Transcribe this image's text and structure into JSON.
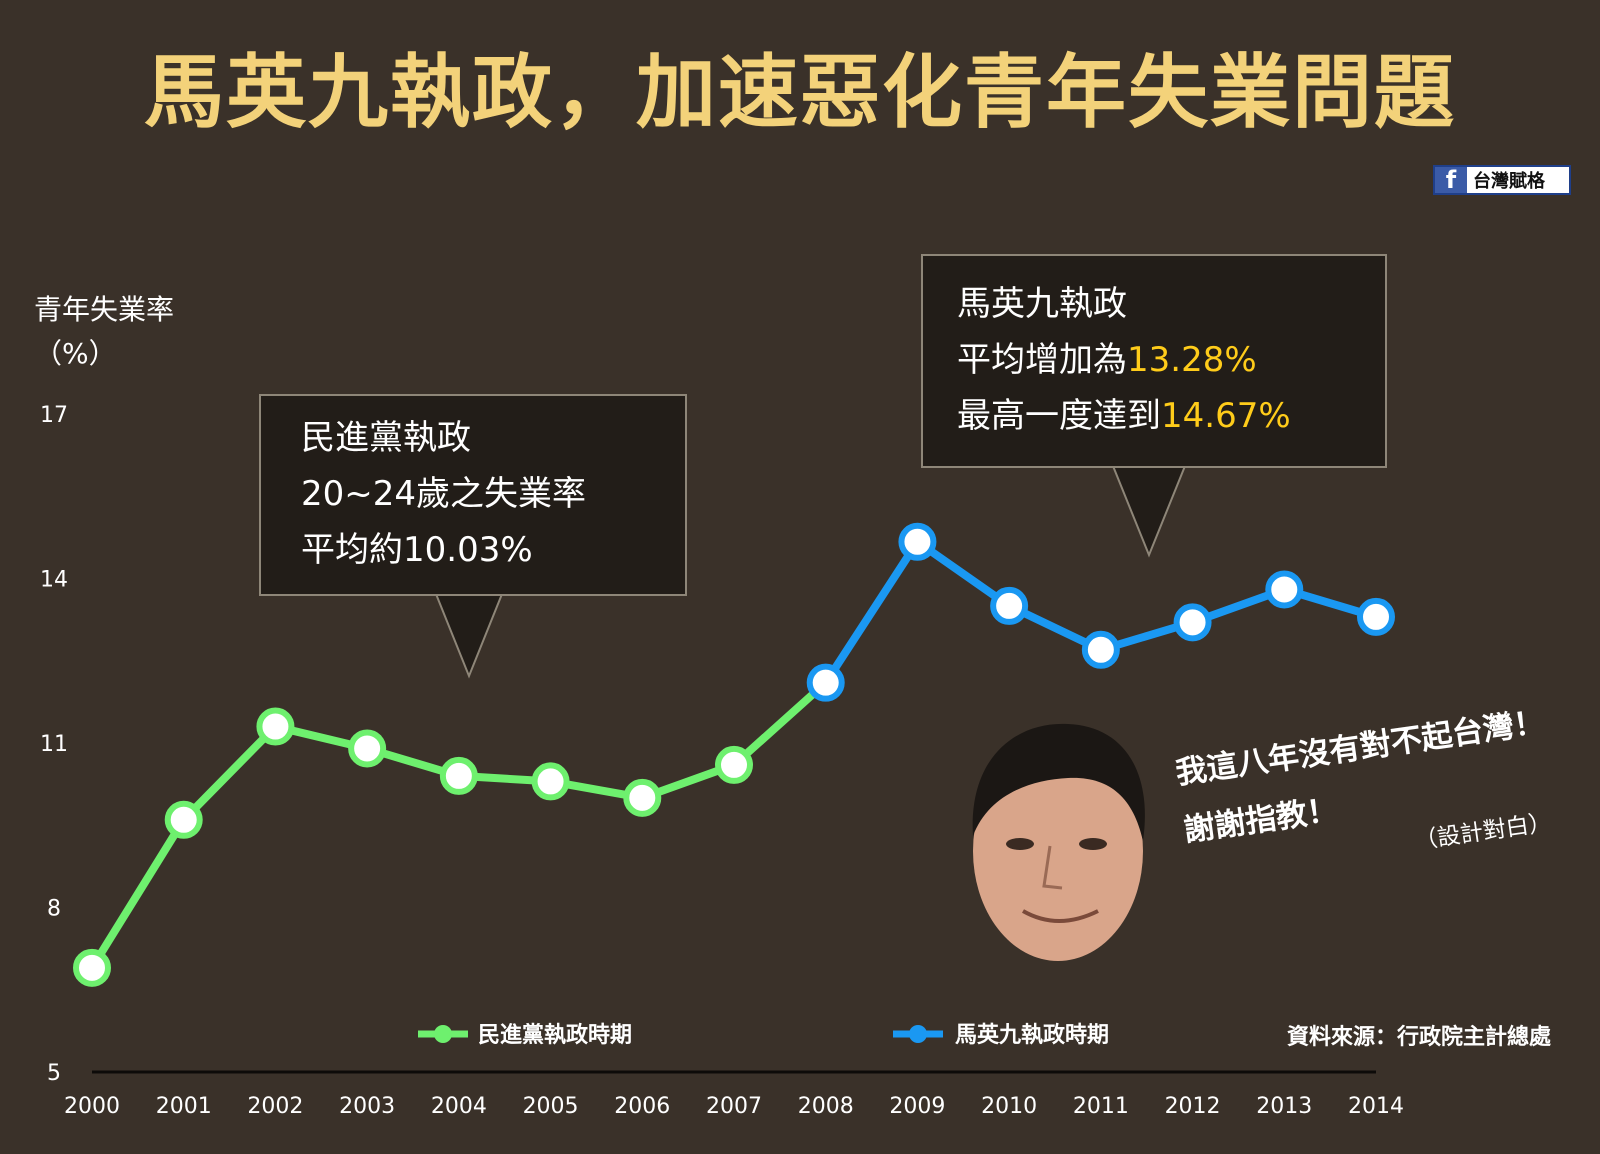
{
  "title": "馬英九執政，加速惡化青年失業問題",
  "brand": {
    "icon": "facebook-icon",
    "label": "台灣賦格"
  },
  "ylabel_line1": "青年失業率",
  "ylabel_line2": "（%）",
  "callout_dpp": {
    "line1": "民進黨執政",
    "line2": "20~24歲之失業率",
    "line3": "平均約10.03%"
  },
  "callout_ma": {
    "line1": "馬英九執政",
    "line2_prefix": "平均增加為",
    "line2_value": "13.28%",
    "line3_prefix": "最高一度達到",
    "line3_value": "14.67%"
  },
  "quote": {
    "line1": "我這八年沒有對不起台灣！",
    "line2": "謝謝指教！",
    "note": "（設計對白）"
  },
  "source": "資料來源：行政院主計總處",
  "colors": {
    "dpp": "#6ef06e",
    "ma": "#1a98f2",
    "title": "#f3d27a",
    "highlight": "#ffcc1a"
  },
  "chart_data": {
    "type": "line",
    "x": [
      2000,
      2001,
      2002,
      2003,
      2004,
      2005,
      2006,
      2007,
      2008,
      2009,
      2010,
      2011,
      2012,
      2013,
      2014
    ],
    "yticks": [
      5,
      8,
      11,
      14,
      17
    ],
    "ylim": [
      5,
      17
    ],
    "series": [
      {
        "name": "民進黨執政時期",
        "color": "#6ef06e",
        "x": [
          2000,
          2001,
          2002,
          2003,
          2004,
          2005,
          2006,
          2007,
          2008
        ],
        "values": [
          6.9,
          9.6,
          11.3,
          10.9,
          10.4,
          10.3,
          10.0,
          10.6,
          12.1
        ]
      },
      {
        "name": "馬英九執政時期",
        "color": "#1a98f2",
        "x": [
          2008,
          2009,
          2010,
          2011,
          2012,
          2013,
          2014
        ],
        "values": [
          12.1,
          14.67,
          13.5,
          12.7,
          13.2,
          13.8,
          13.3
        ]
      }
    ]
  }
}
